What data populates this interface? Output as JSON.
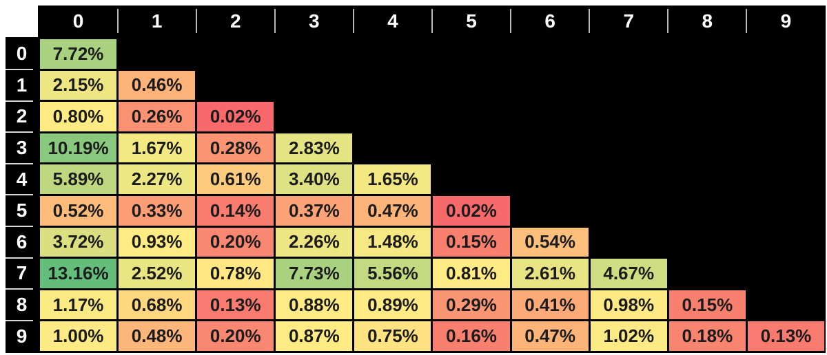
{
  "chart_data": {
    "type": "heatmap",
    "title": "",
    "corner_label": "",
    "columns": [
      "0",
      "1",
      "2",
      "3",
      "4",
      "5",
      "6",
      "7",
      "8",
      "9"
    ],
    "rows": [
      "0",
      "1",
      "2",
      "3",
      "4",
      "5",
      "6",
      "7",
      "8",
      "9"
    ],
    "layout": "lower-triangular",
    "value_unit": "%",
    "value_decimals": 2,
    "values_percent": [
      [
        7.72
      ],
      [
        2.15,
        0.46
      ],
      [
        0.8,
        0.26,
        0.02
      ],
      [
        10.19,
        1.67,
        0.28,
        2.83
      ],
      [
        5.89,
        2.27,
        0.61,
        3.4,
        1.65
      ],
      [
        0.52,
        0.33,
        0.14,
        0.37,
        0.47,
        0.02
      ],
      [
        3.72,
        0.93,
        0.2,
        2.26,
        1.48,
        0.15,
        0.54
      ],
      [
        13.16,
        2.52,
        0.78,
        7.73,
        5.56,
        0.81,
        2.61,
        4.67
      ],
      [
        1.17,
        0.68,
        0.13,
        0.88,
        0.89,
        0.29,
        0.41,
        0.98,
        0.15
      ],
      [
        1.0,
        0.48,
        0.2,
        0.87,
        0.75,
        0.16,
        0.47,
        1.02,
        0.18,
        0.13
      ]
    ],
    "color_scale": {
      "min_color": "#F8696B",
      "mid_color": "#FFEB84",
      "max_color": "#63BE7B",
      "min_value": 0.02,
      "mid_value": 0.8,
      "max_value": 13.16
    },
    "colors": {
      "table_background": "#000000",
      "header_text": "#FFFFFF",
      "cell_text": "#1C1C1C",
      "page_background": "#FFFFFF",
      "corner_cell": "#FFFFFF",
      "gridline": "#000000",
      "header_divider": "#B9B9B9"
    }
  }
}
